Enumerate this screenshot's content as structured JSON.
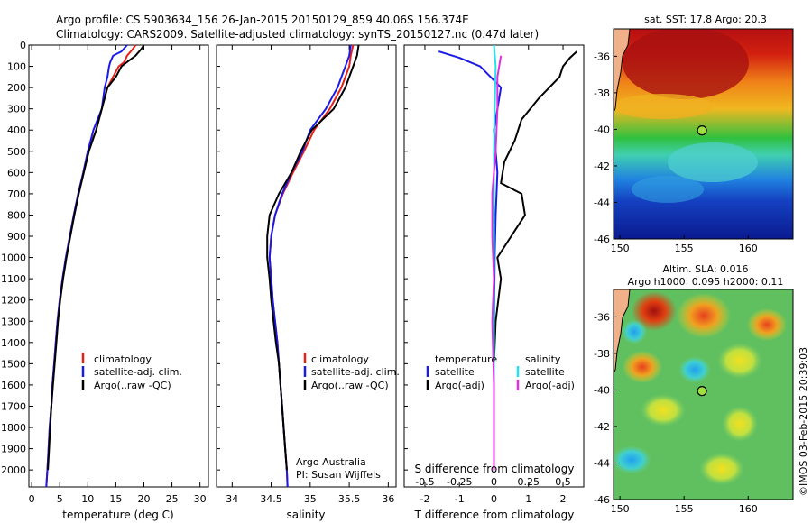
{
  "header": {
    "line1": "Argo profile: CS 5903634_156 26-Jan-2015 20150129_859 40.06S 156.374E",
    "line2": "Climatology: CARS2009. Satellite-adjusted climatology: synTS_20150127.nc (0.47d later)"
  },
  "credit": "©IMOS 03-Feb-2015 20:39:03",
  "colors": {
    "climatology": "#e8201a",
    "satellite": "#1a1ae8",
    "argo": "#000000",
    "satellite_salinity": "#22e0f0",
    "argo_salinity_adj": "#e030e0"
  },
  "chart_data": [
    {
      "type": "line",
      "panel": "temperature",
      "xlabel": "temperature (deg C)",
      "ylabel": "",
      "xlim": [
        -0.5,
        31.5
      ],
      "ylim": [
        2080,
        0
      ],
      "x_ticks": [
        0,
        5,
        10,
        15,
        20,
        25,
        30
      ],
      "y_ticks": [
        0,
        100,
        200,
        300,
        400,
        500,
        600,
        700,
        800,
        900,
        1000,
        1100,
        1200,
        1300,
        1400,
        1500,
        1600,
        1700,
        1800,
        1900,
        2000
      ],
      "legend": [
        "climatology",
        "satellite-adj. clim.",
        "Argo(..raw -QC)"
      ],
      "legend_position": "lower-middle",
      "series": [
        {
          "name": "climatology",
          "color": "#e8201a",
          "points": [
            [
              18.5,
              0
            ],
            [
              18,
              20
            ],
            [
              17,
              50
            ],
            [
              16.5,
              80
            ],
            [
              15.5,
              100
            ],
            [
              14.5,
              150
            ],
            [
              13.5,
              200
            ],
            [
              12.5,
              300
            ],
            [
              11.5,
              400
            ],
            [
              10,
              500
            ],
            [
              9.2,
              600
            ],
            [
              8.3,
              700
            ],
            [
              7.5,
              800
            ],
            [
              6.8,
              900
            ],
            [
              6.1,
              1000
            ],
            [
              5.5,
              1100
            ],
            [
              5,
              1200
            ],
            [
              4.6,
              1300
            ],
            [
              4.3,
              1400
            ],
            [
              4,
              1500
            ],
            [
              3.7,
              1600
            ],
            [
              3.5,
              1700
            ],
            [
              3.2,
              1800
            ],
            [
              3,
              1900
            ],
            [
              2.8,
              2000
            ],
            [
              2.6,
              2080
            ]
          ]
        },
        {
          "name": "satellite-adj. clim.",
          "color": "#1a1ae8",
          "points": [
            [
              17,
              0
            ],
            [
              16,
              30
            ],
            [
              14.5,
              50
            ],
            [
              14,
              80
            ],
            [
              13.8,
              100
            ],
            [
              13.5,
              150
            ],
            [
              13,
              200
            ],
            [
              12.5,
              300
            ],
            [
              11,
              400
            ],
            [
              10,
              500
            ],
            [
              9.2,
              600
            ],
            [
              8.3,
              700
            ],
            [
              7.5,
              800
            ],
            [
              6.8,
              900
            ],
            [
              6.1,
              1000
            ],
            [
              5.5,
              1100
            ],
            [
              5,
              1200
            ],
            [
              4.6,
              1300
            ],
            [
              4.3,
              1400
            ],
            [
              4,
              1500
            ],
            [
              3.7,
              1600
            ],
            [
              3.5,
              1700
            ],
            [
              3.2,
              1800
            ],
            [
              3,
              1900
            ],
            [
              2.8,
              2000
            ],
            [
              2.6,
              2080
            ]
          ]
        },
        {
          "name": "Argo(..raw -QC)",
          "color": "#000000",
          "points": [
            [
              20,
              0
            ],
            [
              19.5,
              20
            ],
            [
              18.5,
              50
            ],
            [
              17,
              80
            ],
            [
              16,
              100
            ],
            [
              15,
              150
            ],
            [
              13.5,
              200
            ],
            [
              12.5,
              300
            ],
            [
              11.5,
              400
            ],
            [
              10.2,
              500
            ],
            [
              9.3,
              600
            ],
            [
              8.4,
              700
            ],
            [
              7.6,
              800
            ],
            [
              6.9,
              900
            ],
            [
              6.2,
              1000
            ],
            [
              5.6,
              1100
            ],
            [
              5.1,
              1200
            ],
            [
              4.7,
              1300
            ],
            [
              4.4,
              1400
            ],
            [
              4.1,
              1500
            ],
            [
              3.8,
              1600
            ],
            [
              3.5,
              1700
            ],
            [
              3.3,
              1800
            ],
            [
              3.1,
              1900
            ],
            [
              2.9,
              2000
            ]
          ]
        }
      ]
    },
    {
      "type": "line",
      "panel": "salinity",
      "xlabel": "salinity",
      "xlim": [
        33.8,
        36.1
      ],
      "ylim": [
        2080,
        0
      ],
      "x_ticks": [
        34,
        34.5,
        35,
        35.5,
        36
      ],
      "legend": [
        "climatology",
        "satellite-adj. clim.",
        "Argo(..raw -QC)"
      ],
      "annotation": [
        "Argo Australia",
        "PI: Susan Wijffels"
      ],
      "series": [
        {
          "name": "climatology",
          "color": "#e8201a",
          "points": [
            [
              35.55,
              0
            ],
            [
              35.52,
              50
            ],
            [
              35.5,
              100
            ],
            [
              35.4,
              200
            ],
            [
              35.25,
              300
            ],
            [
              35.05,
              400
            ],
            [
              34.92,
              500
            ],
            [
              34.78,
              600
            ],
            [
              34.65,
              700
            ],
            [
              34.55,
              800
            ],
            [
              34.5,
              900
            ],
            [
              34.48,
              1000
            ],
            [
              34.5,
              1100
            ],
            [
              34.52,
              1200
            ],
            [
              34.55,
              1300
            ],
            [
              34.58,
              1400
            ],
            [
              34.6,
              1500
            ],
            [
              34.62,
              1600
            ],
            [
              34.64,
              1700
            ],
            [
              34.66,
              1800
            ],
            [
              34.68,
              1900
            ],
            [
              34.7,
              2000
            ],
            [
              34.71,
              2080
            ]
          ]
        },
        {
          "name": "satellite-adj. clim.",
          "color": "#1a1ae8",
          "points": [
            [
              35.52,
              0
            ],
            [
              35.5,
              50
            ],
            [
              35.45,
              100
            ],
            [
              35.35,
              200
            ],
            [
              35.2,
              300
            ],
            [
              35,
              400
            ],
            [
              34.9,
              500
            ],
            [
              34.76,
              600
            ],
            [
              34.64,
              700
            ],
            [
              34.55,
              800
            ],
            [
              34.5,
              900
            ],
            [
              34.48,
              1000
            ],
            [
              34.5,
              1100
            ],
            [
              34.52,
              1200
            ],
            [
              34.55,
              1300
            ],
            [
              34.58,
              1400
            ],
            [
              34.6,
              1500
            ],
            [
              34.62,
              1600
            ],
            [
              34.64,
              1700
            ],
            [
              34.66,
              1800
            ],
            [
              34.68,
              1900
            ],
            [
              34.7,
              2000
            ],
            [
              34.71,
              2080
            ]
          ]
        },
        {
          "name": "Argo(..raw -QC)",
          "color": "#000000",
          "points": [
            [
              35.62,
              0
            ],
            [
              35.6,
              50
            ],
            [
              35.55,
              100
            ],
            [
              35.45,
              200
            ],
            [
              35.3,
              300
            ],
            [
              35.02,
              400
            ],
            [
              34.88,
              500
            ],
            [
              34.76,
              600
            ],
            [
              34.6,
              700
            ],
            [
              34.48,
              800
            ],
            [
              34.45,
              900
            ],
            [
              34.45,
              1000
            ],
            [
              34.48,
              1100
            ],
            [
              34.5,
              1200
            ],
            [
              34.53,
              1300
            ],
            [
              34.56,
              1400
            ],
            [
              34.6,
              1500
            ],
            [
              34.62,
              1600
            ],
            [
              34.64,
              1700
            ],
            [
              34.66,
              1800
            ],
            [
              34.68,
              1900
            ],
            [
              34.7,
              2000
            ]
          ]
        }
      ]
    },
    {
      "type": "line",
      "panel": "difference",
      "xlabel": "T difference from climatology",
      "top_axis_label": "S difference from climatology",
      "xlim": [
        -2.6,
        2.6
      ],
      "x_ticks": [
        -2,
        -1,
        0,
        1,
        2
      ],
      "top_ticks": [
        "-0.5",
        "-0.25",
        "0",
        "0.25",
        "0.5"
      ],
      "legend_groups": [
        {
          "title": "temperature",
          "items": [
            "satellite",
            "Argo(-adj)"
          ]
        },
        {
          "title": "salinity",
          "items": [
            "satellite",
            "Argo(-adj)"
          ]
        }
      ],
      "series": [
        {
          "name": "temperature satellite",
          "color": "#1a1ae8",
          "points": [
            [
              -1.6,
              30
            ],
            [
              -1,
              60
            ],
            [
              -0.4,
              100
            ],
            [
              0.2,
              200
            ],
            [
              0,
              400
            ],
            [
              0.1,
              600
            ],
            [
              0.05,
              800
            ],
            [
              0.02,
              1000
            ],
            [
              0,
              1400
            ],
            [
              0,
              2000
            ]
          ]
        },
        {
          "name": "temperature Argo(-adj)",
          "color": "#000000",
          "points": [
            [
              2.4,
              30
            ],
            [
              2.2,
              60
            ],
            [
              2,
              100
            ],
            [
              1.9,
              150
            ],
            [
              1.3,
              250
            ],
            [
              0.8,
              350
            ],
            [
              0.6,
              450
            ],
            [
              0.3,
              550
            ],
            [
              0.2,
              650
            ],
            [
              0.8,
              700
            ],
            [
              0.9,
              800
            ],
            [
              0.5,
              900
            ],
            [
              0.1,
              1000
            ],
            [
              0.2,
              1100
            ],
            [
              0.05,
              1300
            ],
            [
              0,
              1500
            ],
            [
              0,
              2000
            ]
          ]
        },
        {
          "name": "salinity satellite",
          "color": "#22e0f0",
          "points": [
            [
              0,
              0
            ],
            [
              0.05,
              100
            ],
            [
              0.02,
              300
            ],
            [
              0,
              500
            ],
            [
              0,
              1000
            ],
            [
              0,
              2000
            ]
          ]
        },
        {
          "name": "salinity Argo(-adj)",
          "color": "#e030e0",
          "points": [
            [
              0.2,
              50
            ],
            [
              0.1,
              150
            ],
            [
              0.1,
              300
            ],
            [
              0.05,
              500
            ],
            [
              -0.05,
              700
            ],
            [
              -0.05,
              900
            ],
            [
              0,
              1100
            ],
            [
              -0.05,
              1300
            ],
            [
              0,
              1600
            ],
            [
              0,
              2000
            ]
          ]
        }
      ]
    },
    {
      "type": "heatmap",
      "panel": "map-sst",
      "title": "sat. SST: 17.8 Argo: 20.3",
      "x_ticks": [
        150,
        155,
        160
      ],
      "y_ticks": [
        -36,
        -38,
        -40,
        -42,
        -44,
        -46
      ],
      "xlim": [
        149.5,
        163.5
      ],
      "ylim": [
        -46,
        -34.5
      ],
      "marker": [
        156.4,
        -40.06
      ]
    },
    {
      "type": "heatmap",
      "panel": "map-sla",
      "title": "Altim. SLA: 0.016",
      "subtitle": "Argo h1000: 0.095 h2000: 0.11",
      "x_ticks": [
        150,
        155,
        160
      ],
      "y_ticks": [
        -36,
        -38,
        -40,
        -42,
        -44,
        -46
      ],
      "xlim": [
        149.5,
        163.5
      ],
      "ylim": [
        -46,
        -34.5
      ],
      "marker": [
        156.4,
        -40.06
      ]
    }
  ]
}
